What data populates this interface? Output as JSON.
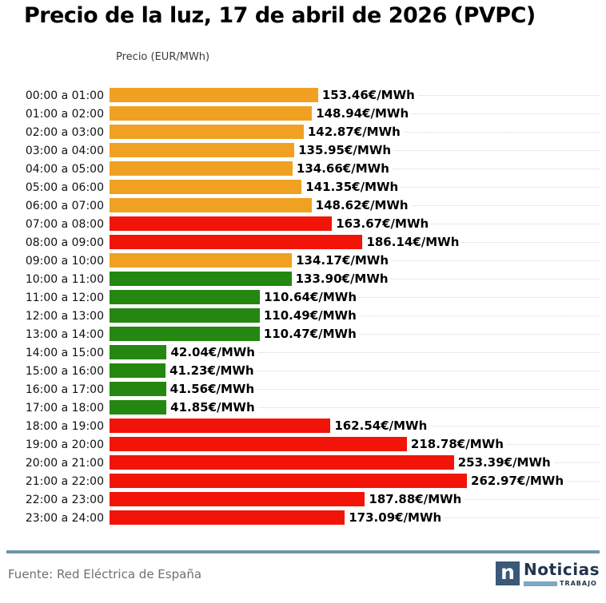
{
  "title": "Precio de la luz, 17 de abril de 2026 (PVPC)",
  "axis_label": "Precio (EUR/MWh)",
  "colors": {
    "orange": "#F0A122",
    "red": "#F21408",
    "green": "#238710",
    "divider": "#7295AE",
    "logo_navy": "#22344E",
    "logo_box": "#3A5878",
    "logo_lightblue": "#7FA6C2"
  },
  "chart_data": {
    "type": "bar",
    "orientation": "horizontal",
    "title": "Precio de la luz, 17 de abril de 2026 (PVPC)",
    "xlabel": "Precio (EUR/MWh)",
    "unit": "EUR/MWh",
    "xlim": [
      0,
      280
    ],
    "grid": "horizontal dotted line per row",
    "legend": "none",
    "categories": [
      "00:00 a 01:00",
      "01:00 a 02:00",
      "02:00 a 03:00",
      "03:00 a 04:00",
      "04:00 a 05:00",
      "05:00 a 06:00",
      "06:00 a 07:00",
      "07:00 a 08:00",
      "08:00 a 09:00",
      "09:00 a 10:00",
      "10:00 a 11:00",
      "11:00 a 12:00",
      "12:00 a 13:00",
      "13:00 a 14:00",
      "14:00 a 15:00",
      "15:00 a 16:00",
      "16:00 a 17:00",
      "17:00 a 18:00",
      "18:00 a 19:00",
      "19:00 a 20:00",
      "20:00 a 21:00",
      "21:00 a 22:00",
      "22:00 a 23:00",
      "23:00 a 24:00"
    ],
    "values": [
      153.46,
      148.94,
      142.87,
      135.95,
      134.66,
      141.35,
      148.62,
      163.67,
      186.14,
      134.17,
      133.9,
      110.64,
      110.49,
      110.47,
      42.04,
      41.23,
      41.56,
      41.85,
      162.54,
      218.78,
      253.39,
      262.97,
      187.88,
      173.09
    ],
    "value_labels": [
      "153.46€/MWh",
      "148.94€/MWh",
      "142.87€/MWh",
      "135.95€/MWh",
      "134.66€/MWh",
      "141.35€/MWh",
      "148.62€/MWh",
      "163.67€/MWh",
      "186.14€/MWh",
      "134.17€/MWh",
      "133.90€/MWh",
      "110.64€/MWh",
      "110.49€/MWh",
      "110.47€/MWh",
      "42.04€/MWh",
      "41.23€/MWh",
      "41.56€/MWh",
      "41.85€/MWh",
      "162.54€/MWh",
      "218.78€/MWh",
      "253.39€/MWh",
      "262.97€/MWh",
      "187.88€/MWh",
      "173.09€/MWh"
    ],
    "bar_colors": [
      "orange",
      "orange",
      "orange",
      "orange",
      "orange",
      "orange",
      "orange",
      "red",
      "red",
      "orange",
      "green",
      "green",
      "green",
      "green",
      "green",
      "green",
      "green",
      "green",
      "red",
      "red",
      "red",
      "red",
      "red",
      "red"
    ]
  },
  "footer": {
    "source": "Fuente: Red Eléctrica de España",
    "logo_icon": "n",
    "logo_name": "Noticias",
    "logo_subtext": "TRABAJO"
  }
}
